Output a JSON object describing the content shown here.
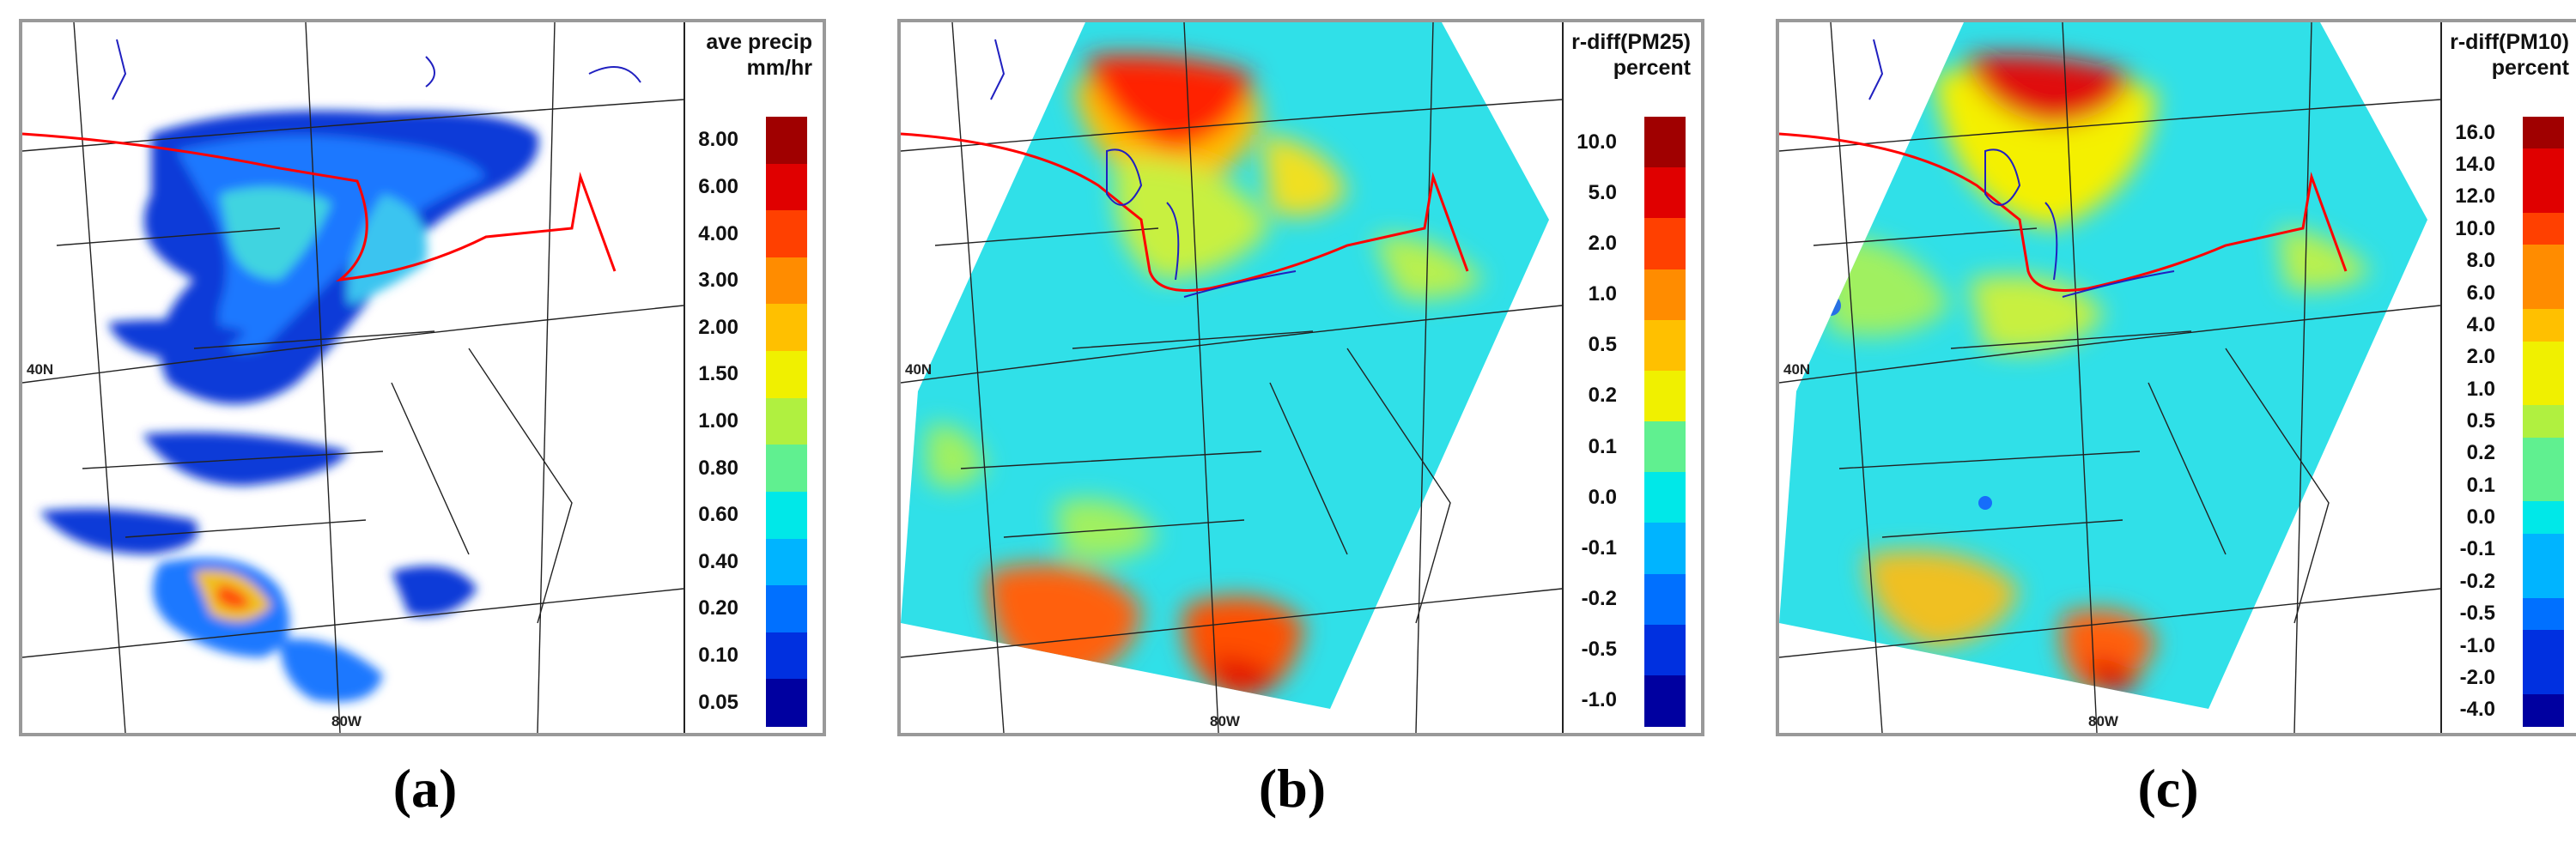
{
  "panels": [
    {
      "caption": "(a)",
      "title": [
        "ave precip",
        "mm/hr"
      ],
      "labels": [
        "8.00",
        "6.00",
        "4.00",
        "3.00",
        "2.00",
        "1.50",
        "1.00",
        "0.80",
        "0.60",
        "0.40",
        "0.20",
        "0.10",
        "0.05"
      ]
    },
    {
      "caption": "(b)",
      "title": [
        "r-diff(PM25)",
        "percent"
      ],
      "labels": [
        "10.0",
        "5.0",
        "2.0",
        "1.0",
        "0.5",
        "0.2",
        "0.1",
        "0.0",
        "-0.1",
        "-0.2",
        "-0.5",
        "-1.0"
      ]
    },
    {
      "caption": "(c)",
      "title": [
        "r-diff(PM10)",
        "percent"
      ],
      "labels": [
        "16.0",
        "14.0",
        "12.0",
        "10.0",
        "8.0",
        "6.0",
        "4.0",
        "2.0",
        "1.0",
        "0.5",
        "0.2",
        "0.1",
        "0.0",
        "-0.1",
        "-0.2",
        "-0.5",
        "-1.0",
        "-2.0",
        "-4.0"
      ]
    }
  ],
  "map_labels": {
    "lat": "40N",
    "lon": "80W"
  },
  "colors": {
    "scale": [
      "#a00000",
      "#e00000",
      "#ff4000",
      "#ff8c00",
      "#ffc000",
      "#f0f000",
      "#b0f040",
      "#60f090",
      "#00e8e8",
      "#00b4ff",
      "#0070ff",
      "#0030e0",
      "#0000a0"
    ],
    "background": "#ffffff",
    "border_line": "#ff0000",
    "lake_line": "#2020c0"
  }
}
